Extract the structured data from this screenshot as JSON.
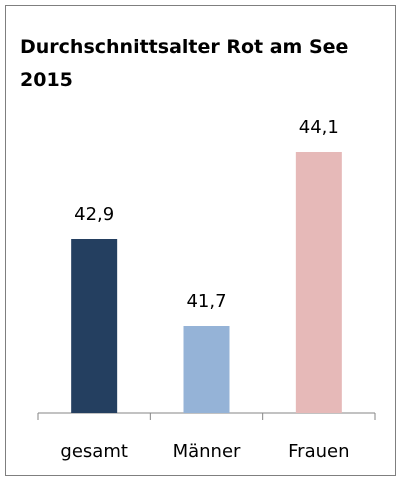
{
  "chart_data": {
    "type": "bar",
    "title": "Durchschnittsalter Rot am See 2015",
    "categories": [
      "gesamt",
      "Männer",
      "Frauen"
    ],
    "values": [
      42.9,
      41.7,
      44.1
    ],
    "value_labels": [
      "42,9",
      "41,7",
      "44,1"
    ],
    "colors": [
      "#243f60",
      "#95b3d7",
      "#e6b9b8"
    ],
    "ylim": [
      40.5,
      44.5
    ]
  }
}
